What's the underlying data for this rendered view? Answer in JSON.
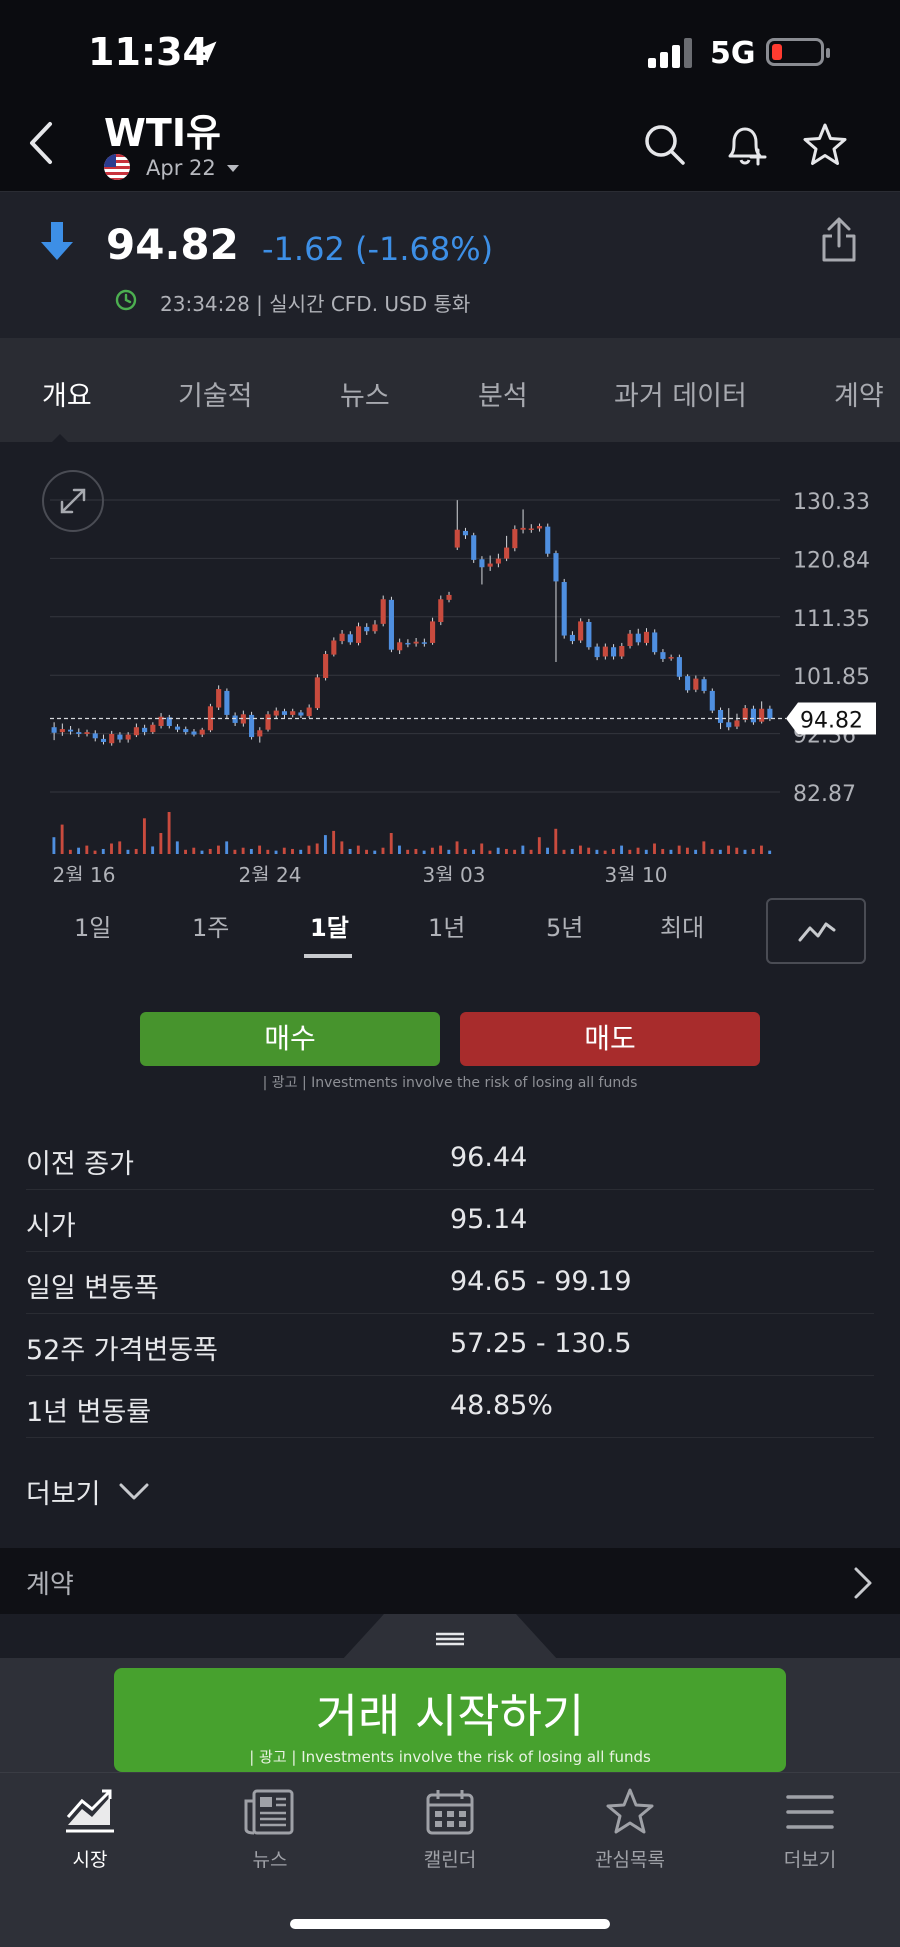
{
  "status_bar": {
    "time": "11:34",
    "network": "5G"
  },
  "header": {
    "title": "WTI유",
    "date": "Apr 22"
  },
  "quote": {
    "price": "94.82",
    "change": "-1.62 (-1.68%)",
    "meta": "23:34:28 | 실시간 CFD. USD 통화"
  },
  "tabs": [
    "개요",
    "기술적",
    "뉴스",
    "분석",
    "과거 데이터",
    "계약"
  ],
  "chart_data": {
    "type": "candlestick",
    "y_ticks": [
      "130.33",
      "120.84",
      "111.35",
      "101.85",
      "92.36",
      "82.87"
    ],
    "x_ticks": [
      "2월 16",
      "2월 24",
      "3월 03",
      "3월 10"
    ],
    "current_price_label": "94.82",
    "ylim": [
      82.87,
      130.33
    ],
    "colors": {
      "up": "#c94b3e",
      "down": "#4f8fe0"
    },
    "candles": [
      {
        "o": 93.4,
        "c": 92.5,
        "h": 94.2,
        "l": 91.3
      },
      {
        "o": 92.6,
        "c": 93.1,
        "h": 94.0,
        "l": 92.0
      },
      {
        "o": 93.0,
        "c": 92.7,
        "h": 93.6,
        "l": 92.2
      },
      {
        "o": 92.6,
        "c": 92.3,
        "h": 93.2,
        "l": 91.8
      },
      {
        "o": 92.3,
        "c": 92.6,
        "h": 93.0,
        "l": 91.9
      },
      {
        "o": 92.4,
        "c": 91.6,
        "h": 92.9,
        "l": 91.1
      },
      {
        "o": 91.5,
        "c": 91.0,
        "h": 92.2,
        "l": 90.6
      },
      {
        "o": 90.8,
        "c": 92.3,
        "h": 92.8,
        "l": 90.4
      },
      {
        "o": 92.2,
        "c": 91.4,
        "h": 92.6,
        "l": 90.9
      },
      {
        "o": 91.4,
        "c": 92.2,
        "h": 92.6,
        "l": 90.9
      },
      {
        "o": 92.1,
        "c": 93.4,
        "h": 94.0,
        "l": 91.8
      },
      {
        "o": 93.3,
        "c": 92.6,
        "h": 93.8,
        "l": 92.1
      },
      {
        "o": 92.6,
        "c": 93.8,
        "h": 94.2,
        "l": 92.3
      },
      {
        "o": 93.6,
        "c": 95.1,
        "h": 95.7,
        "l": 93.2
      },
      {
        "o": 95.0,
        "c": 93.6,
        "h": 95.4,
        "l": 93.2
      },
      {
        "o": 93.5,
        "c": 93.0,
        "h": 93.9,
        "l": 92.6
      },
      {
        "o": 93.1,
        "c": 92.6,
        "h": 93.5,
        "l": 92.2
      },
      {
        "o": 92.7,
        "c": 92.2,
        "h": 93.1,
        "l": 91.9
      },
      {
        "o": 92.2,
        "c": 93.0,
        "h": 93.3,
        "l": 91.8
      },
      {
        "o": 92.9,
        "c": 96.8,
        "h": 97.2,
        "l": 92.6
      },
      {
        "o": 96.6,
        "c": 99.6,
        "h": 100.2,
        "l": 96.2
      },
      {
        "o": 99.3,
        "c": 95.4,
        "h": 99.7,
        "l": 94.9
      },
      {
        "o": 95.3,
        "c": 94.1,
        "h": 95.8,
        "l": 93.6
      },
      {
        "o": 94.0,
        "c": 95.5,
        "h": 96.1,
        "l": 93.5
      },
      {
        "o": 95.4,
        "c": 91.8,
        "h": 95.9,
        "l": 91.4
      },
      {
        "o": 91.9,
        "c": 92.9,
        "h": 93.4,
        "l": 90.9
      },
      {
        "o": 93.0,
        "c": 95.5,
        "h": 96.0,
        "l": 92.7
      },
      {
        "o": 95.3,
        "c": 96.1,
        "h": 96.6,
        "l": 94.8
      },
      {
        "o": 96.0,
        "c": 95.4,
        "h": 96.4,
        "l": 94.9
      },
      {
        "o": 95.4,
        "c": 96.0,
        "h": 96.4,
        "l": 95.0
      },
      {
        "o": 95.8,
        "c": 95.3,
        "h": 96.2,
        "l": 94.9
      },
      {
        "o": 95.2,
        "c": 96.6,
        "h": 97.1,
        "l": 94.9
      },
      {
        "o": 96.5,
        "c": 101.5,
        "h": 102.0,
        "l": 96.2
      },
      {
        "o": 101.4,
        "c": 105.3,
        "h": 105.8,
        "l": 101.0
      },
      {
        "o": 105.2,
        "c": 107.5,
        "h": 108.0,
        "l": 104.9
      },
      {
        "o": 107.4,
        "c": 108.6,
        "h": 109.2,
        "l": 106.9
      },
      {
        "o": 108.5,
        "c": 107.2,
        "h": 109.0,
        "l": 106.8
      },
      {
        "o": 107.1,
        "c": 109.8,
        "h": 110.4,
        "l": 106.7
      },
      {
        "o": 109.7,
        "c": 109.0,
        "h": 110.3,
        "l": 108.4
      },
      {
        "o": 109.0,
        "c": 110.1,
        "h": 110.8,
        "l": 108.6
      },
      {
        "o": 110.2,
        "c": 114.2,
        "h": 114.8,
        "l": 109.8
      },
      {
        "o": 114.1,
        "c": 106.0,
        "h": 114.6,
        "l": 105.6
      },
      {
        "o": 105.9,
        "c": 107.2,
        "h": 107.8,
        "l": 105.3
      },
      {
        "o": 107.1,
        "c": 107.0,
        "h": 107.7,
        "l": 106.4
      },
      {
        "o": 107.0,
        "c": 107.3,
        "h": 107.9,
        "l": 106.5
      },
      {
        "o": 107.2,
        "c": 107.0,
        "h": 107.8,
        "l": 106.5
      },
      {
        "o": 107.1,
        "c": 110.6,
        "h": 111.2,
        "l": 106.8
      },
      {
        "o": 110.5,
        "c": 114.2,
        "h": 114.8,
        "l": 110.0
      },
      {
        "o": 114.1,
        "c": 114.9,
        "h": 115.4,
        "l": 113.7
      },
      {
        "o": 122.6,
        "c": 125.5,
        "h": 130.3,
        "l": 122.2
      },
      {
        "o": 125.3,
        "c": 124.6,
        "h": 125.8,
        "l": 124.0
      },
      {
        "o": 124.6,
        "c": 120.6,
        "h": 125.0,
        "l": 120.1
      },
      {
        "o": 120.7,
        "c": 119.4,
        "h": 121.2,
        "l": 116.6
      },
      {
        "o": 119.5,
        "c": 120.0,
        "h": 121.3,
        "l": 118.8
      },
      {
        "o": 120.0,
        "c": 120.8,
        "h": 121.6,
        "l": 119.4
      },
      {
        "o": 120.8,
        "c": 122.6,
        "h": 124.5,
        "l": 120.4
      },
      {
        "o": 122.5,
        "c": 125.6,
        "h": 126.2,
        "l": 122.0
      },
      {
        "o": 125.5,
        "c": 125.8,
        "h": 128.8,
        "l": 124.9
      },
      {
        "o": 125.5,
        "c": 125.7,
        "h": 126.4,
        "l": 125.0
      },
      {
        "o": 125.7,
        "c": 126.1,
        "h": 126.5,
        "l": 125.2
      },
      {
        "o": 126.0,
        "c": 121.6,
        "h": 126.5,
        "l": 121.1
      },
      {
        "o": 121.7,
        "c": 117.1,
        "h": 122.1,
        "l": 104.0
      },
      {
        "o": 117.0,
        "c": 108.3,
        "h": 117.5,
        "l": 107.8
      },
      {
        "o": 108.4,
        "c": 107.4,
        "h": 109.0,
        "l": 106.9
      },
      {
        "o": 107.5,
        "c": 110.6,
        "h": 111.1,
        "l": 107.1
      },
      {
        "o": 110.5,
        "c": 106.4,
        "h": 111.0,
        "l": 106.0
      },
      {
        "o": 106.5,
        "c": 104.8,
        "h": 107.0,
        "l": 104.3
      },
      {
        "o": 104.9,
        "c": 106.5,
        "h": 107.0,
        "l": 104.4
      },
      {
        "o": 106.4,
        "c": 104.9,
        "h": 106.9,
        "l": 104.4
      },
      {
        "o": 104.9,
        "c": 106.6,
        "h": 107.1,
        "l": 104.5
      },
      {
        "o": 106.6,
        "c": 108.6,
        "h": 109.2,
        "l": 106.2
      },
      {
        "o": 108.6,
        "c": 107.2,
        "h": 109.4,
        "l": 106.7
      },
      {
        "o": 107.1,
        "c": 108.9,
        "h": 109.5,
        "l": 106.7
      },
      {
        "o": 108.8,
        "c": 105.6,
        "h": 109.3,
        "l": 105.2
      },
      {
        "o": 105.6,
        "c": 104.5,
        "h": 106.1,
        "l": 104.0
      },
      {
        "o": 104.6,
        "c": 104.8,
        "h": 105.2,
        "l": 104.2
      },
      {
        "o": 104.8,
        "c": 101.6,
        "h": 105.2,
        "l": 101.1
      },
      {
        "o": 101.7,
        "c": 99.4,
        "h": 102.0,
        "l": 99.0
      },
      {
        "o": 99.5,
        "c": 101.3,
        "h": 101.8,
        "l": 99.1
      },
      {
        "o": 101.2,
        "c": 99.3,
        "h": 101.6,
        "l": 98.9
      },
      {
        "o": 99.3,
        "c": 96.1,
        "h": 99.7,
        "l": 95.7
      },
      {
        "o": 96.2,
        "c": 94.1,
        "h": 96.6,
        "l": 93.1
      },
      {
        "o": 94.2,
        "c": 93.4,
        "h": 96.5,
        "l": 92.9
      },
      {
        "o": 93.5,
        "c": 94.5,
        "h": 95.6,
        "l": 93.1
      },
      {
        "o": 94.6,
        "c": 96.5,
        "h": 97.0,
        "l": 94.2
      },
      {
        "o": 96.4,
        "c": 94.2,
        "h": 96.9,
        "l": 93.8
      },
      {
        "o": 94.3,
        "c": 96.4,
        "h": 97.6,
        "l": 94.0
      },
      {
        "o": 96.4,
        "c": 94.8,
        "h": 96.9,
        "l": 94.4
      }
    ],
    "volume": [
      40,
      70,
      10,
      15,
      20,
      8,
      12,
      25,
      30,
      10,
      12,
      85,
      18,
      50,
      100,
      30,
      10,
      15,
      8,
      12,
      20,
      30,
      10,
      15,
      12,
      20,
      10,
      8,
      15,
      12,
      10,
      20,
      25,
      45,
      55,
      30,
      12,
      20,
      10,
      8,
      15,
      50,
      20,
      10,
      12,
      8,
      15,
      20,
      10,
      30,
      12,
      10,
      25,
      8,
      15,
      12,
      10,
      20,
      10,
      40,
      15,
      60,
      10,
      12,
      20,
      15,
      10,
      8,
      12,
      20,
      10,
      15,
      10,
      25,
      12,
      10,
      20,
      15,
      10,
      30,
      12,
      10,
      20,
      15,
      10,
      12,
      20,
      8
    ]
  },
  "ranges": [
    "1일",
    "1주",
    "1달",
    "1년",
    "5년",
    "최대"
  ],
  "trade": {
    "buy_label": "매수",
    "sell_label": "매도",
    "disclaimer": "| 광고 | Investments involve the risk of losing all funds"
  },
  "stats": [
    {
      "label": "이전 종가",
      "value": "96.44"
    },
    {
      "label": "시가",
      "value": "95.14"
    },
    {
      "label": "일일 변동폭",
      "value": "94.65 - 99.19"
    },
    {
      "label": "52주 가격변동폭",
      "value": "57.25 - 130.5"
    },
    {
      "label": "1년 변동률",
      "value": "48.85%"
    }
  ],
  "more_label": "더보기",
  "section": {
    "label": "계약"
  },
  "start_trading": {
    "label": "거래 시작하기",
    "disclaimer": "| 광고 | Investments involve the risk of losing all funds"
  },
  "tab_bar": [
    {
      "label": "시장",
      "icon": "trend-chart-icon"
    },
    {
      "label": "뉴스",
      "icon": "newspaper-icon"
    },
    {
      "label": "캘린더",
      "icon": "calendar-icon"
    },
    {
      "label": "관심목록",
      "icon": "star-icon"
    },
    {
      "label": "더보기",
      "icon": "menu-icon"
    }
  ]
}
